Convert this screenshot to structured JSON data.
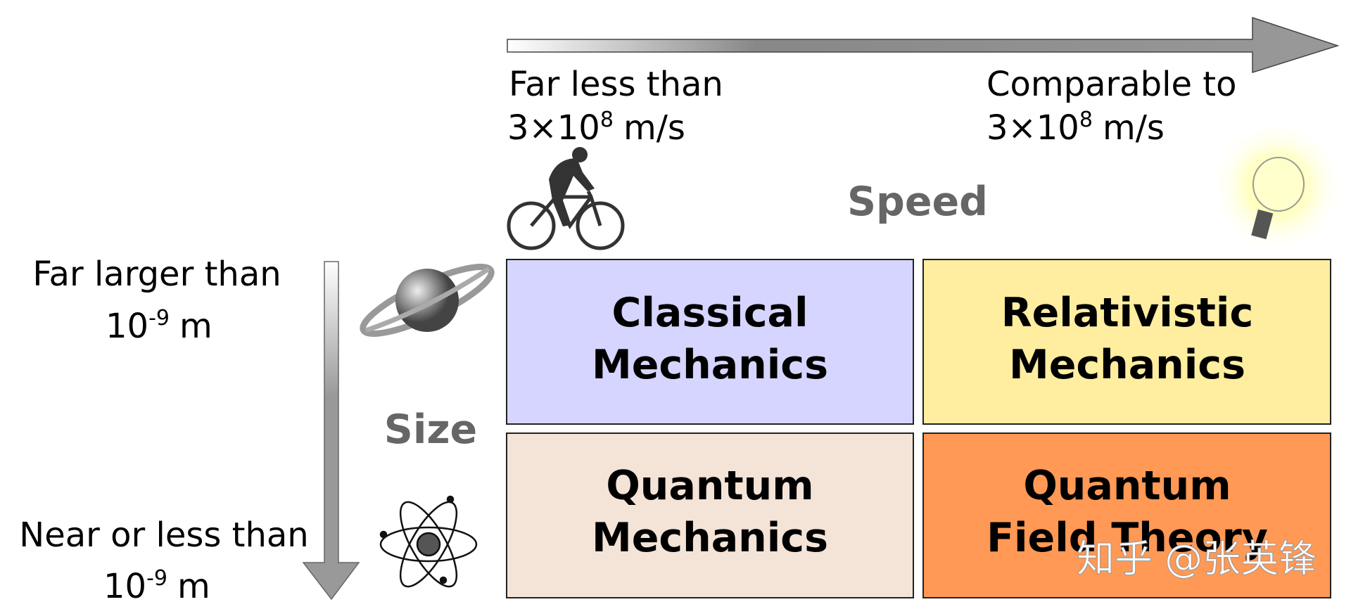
{
  "speed_axis": {
    "label": "Speed",
    "low": {
      "line1": "Far less than",
      "base": "3×10",
      "exponent": "8",
      "unit": "m/s"
    },
    "high": {
      "line1": "Comparable to",
      "base": "3×10",
      "exponent": "8",
      "unit": "m/s"
    }
  },
  "size_axis": {
    "label": "Size",
    "large": {
      "line1": "Far larger than",
      "base": "10",
      "exponent": "-9",
      "unit": "m"
    },
    "small": {
      "line1": "Near or less than",
      "base": "10",
      "exponent": "-9",
      "unit": "m"
    }
  },
  "cells": [
    {
      "line1": "Classical",
      "line2": "Mechanics"
    },
    {
      "line1": "Relativistic",
      "line2": "Mechanics"
    },
    {
      "line1": "Quantum",
      "line2": "Mechanics"
    },
    {
      "line1": "Quantum",
      "line2": "Field Theory"
    }
  ],
  "watermark": "知乎 @张英锋"
}
